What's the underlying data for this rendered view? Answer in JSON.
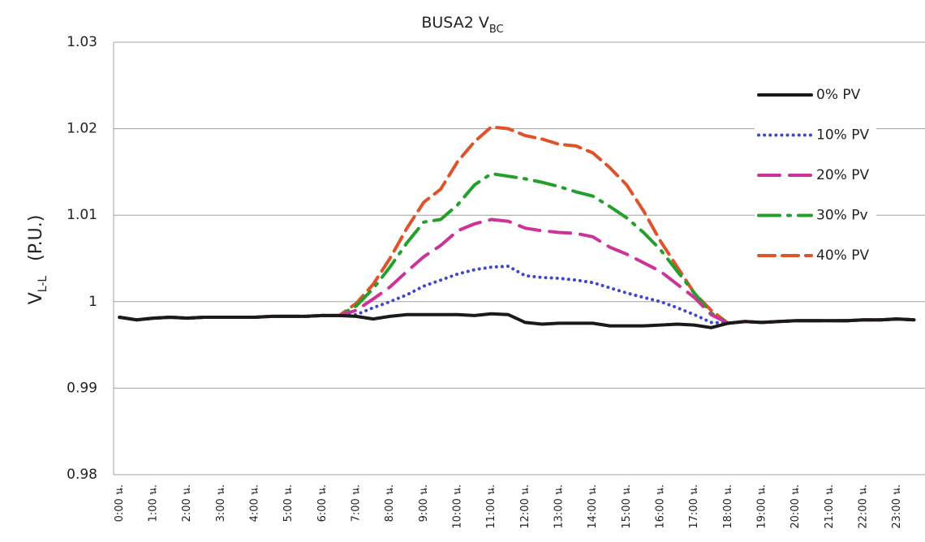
{
  "chart_data": {
    "type": "line",
    "title": "BUSA2 V",
    "title_sub": "BC",
    "ylabel": "V",
    "ylabel_sub": "L-L",
    "ylabel_unit": "(P.U.)",
    "categories": [
      "0:00 น.",
      null,
      "1:00 น.",
      null,
      "2:00 น.",
      null,
      "3:00 น.",
      null,
      "4:00 น.",
      null,
      "5:00 น.",
      null,
      "6:00 น.",
      null,
      "7:00 น.",
      null,
      "8:00 น.",
      null,
      "9:00 น.",
      null,
      "10:00 น.",
      null,
      "11:00 น.",
      null,
      "12:00 น.",
      null,
      "13:00 น.",
      null,
      "14:00 น.",
      null,
      "15:00 น.",
      null,
      "16:00 น.",
      null,
      "17:00 น.",
      null,
      "18:00 น.",
      null,
      "19:00 น.",
      null,
      "20:00 น.",
      null,
      "21:00 น.",
      null,
      "22:00 น.",
      null,
      "23:00 น.",
      null
    ],
    "ylim": [
      0.98,
      1.03
    ],
    "yticks": [
      0.98,
      0.99,
      1,
      1.01,
      1.02,
      1.03
    ],
    "grid": true,
    "legend": "right",
    "series": [
      {
        "name": "0% PV",
        "color": "#1a1a1a",
        "style": "solid",
        "values": [
          0.9982,
          0.9979,
          0.9981,
          0.9982,
          0.9981,
          0.9982,
          0.9982,
          0.9982,
          0.9982,
          0.9983,
          0.9983,
          0.9983,
          0.9984,
          0.9984,
          0.9983,
          0.998,
          0.9983,
          0.9985,
          0.9985,
          0.9985,
          0.9985,
          0.9984,
          0.9986,
          0.9985,
          0.9976,
          0.9974,
          0.9975,
          0.9975,
          0.9975,
          0.9972,
          0.9972,
          0.9972,
          0.9973,
          0.9974,
          0.9973,
          0.997,
          0.9975,
          0.9977,
          0.9976,
          0.9977,
          0.9978,
          0.9978,
          0.9978,
          0.9978,
          0.9979,
          0.9979,
          0.998,
          0.9979
        ]
      },
      {
        "name": "10% PV",
        "color": "#3f48cc",
        "style": "dotted",
        "values": [
          0.9982,
          0.9979,
          0.9981,
          0.9982,
          0.9981,
          0.9982,
          0.9982,
          0.9982,
          0.9982,
          0.9983,
          0.9983,
          0.9983,
          0.9984,
          0.9984,
          0.9985,
          0.9993,
          1.0,
          1.0008,
          1.0018,
          1.0025,
          1.0032,
          1.0037,
          1.004,
          1.0041,
          1.003,
          1.0028,
          1.0027,
          1.0025,
          1.0022,
          1.0016,
          1.001,
          1.0005,
          1.0,
          0.9993,
          0.9985,
          0.9976,
          0.9975,
          0.9977,
          0.9976,
          0.9977,
          0.9978,
          0.9978,
          0.9978,
          0.9978,
          0.9979,
          0.9979,
          0.998,
          0.9979
        ]
      },
      {
        "name": "20% PV",
        "color": "#cc3399",
        "style": "longdash",
        "values": [
          0.9982,
          0.9979,
          0.9981,
          0.9982,
          0.9981,
          0.9982,
          0.9982,
          0.9982,
          0.9982,
          0.9983,
          0.9983,
          0.9983,
          0.9984,
          0.9984,
          0.999,
          1.0003,
          1.0017,
          1.0035,
          1.0052,
          1.0065,
          1.0082,
          1.009,
          1.0095,
          1.0093,
          1.0085,
          1.0082,
          1.008,
          1.0079,
          1.0075,
          1.0063,
          1.0055,
          1.0045,
          1.0035,
          1.002,
          1.0005,
          0.9985,
          0.9975,
          0.9977,
          0.9976,
          0.9977,
          0.9978,
          0.9978,
          0.9978,
          0.9978,
          0.9979,
          0.9979,
          0.998,
          0.9979
        ]
      },
      {
        "name": "30% Pv",
        "color": "#22a02a",
        "style": "dashdot",
        "values": [
          0.9982,
          0.9979,
          0.9981,
          0.9982,
          0.9981,
          0.9982,
          0.9982,
          0.9982,
          0.9982,
          0.9983,
          0.9983,
          0.9983,
          0.9984,
          0.9984,
          0.9995,
          1.0015,
          1.004,
          1.0068,
          1.0092,
          1.0095,
          1.0112,
          1.0135,
          1.0148,
          1.0145,
          1.0142,
          1.0138,
          1.0133,
          1.0127,
          1.0122,
          1.011,
          1.0097,
          1.008,
          1.006,
          1.0035,
          1.001,
          0.9987,
          0.9975,
          0.9977,
          0.9976,
          0.9977,
          0.9978,
          0.9978,
          0.9978,
          0.9978,
          0.9979,
          0.9979,
          0.998,
          0.9979
        ]
      },
      {
        "name": "40% PV",
        "color": "#e0522a",
        "style": "dash",
        "values": [
          0.9982,
          0.9979,
          0.9981,
          0.9982,
          0.9981,
          0.9982,
          0.9982,
          0.9982,
          0.9982,
          0.9983,
          0.9983,
          0.9983,
          0.9984,
          0.9984,
          0.9998,
          1.002,
          1.005,
          1.0085,
          1.0115,
          1.013,
          1.0162,
          1.0185,
          1.0202,
          1.02,
          1.0192,
          1.0188,
          1.0182,
          1.018,
          1.0172,
          1.0155,
          1.0135,
          1.0105,
          1.007,
          1.004,
          1.001,
          0.999,
          0.9975,
          0.9977,
          0.9976,
          0.9977,
          0.9978,
          0.9978,
          0.9978,
          0.9978,
          0.9979,
          0.9979,
          0.998,
          0.9979
        ]
      }
    ]
  }
}
